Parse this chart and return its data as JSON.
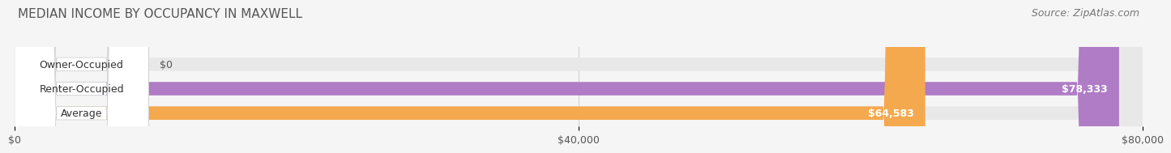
{
  "title": "MEDIAN INCOME BY OCCUPANCY IN MAXWELL",
  "source": "Source: ZipAtlas.com",
  "categories": [
    "Owner-Occupied",
    "Renter-Occupied",
    "Average"
  ],
  "values": [
    0,
    78333,
    64583
  ],
  "bar_colors": [
    "#7ecece",
    "#b07cc6",
    "#f5a94e"
  ],
  "bar_labels": [
    "$0",
    "$78,333",
    "$64,583"
  ],
  "xlim": [
    0,
    80000
  ],
  "xticks": [
    0,
    40000,
    80000
  ],
  "xtick_labels": [
    "$0",
    "$40,000",
    "$80,000"
  ],
  "background_color": "#f5f5f5",
  "bar_bg_color": "#e8e8e8",
  "title_fontsize": 11,
  "label_fontsize": 9,
  "source_fontsize": 9
}
